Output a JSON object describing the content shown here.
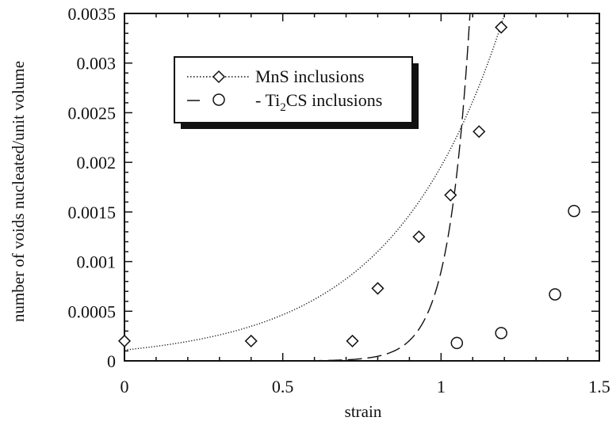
{
  "chart_data": {
    "type": "scatter",
    "xlabel": "strain",
    "ylabel": "number of voids nucleated/unit volume",
    "xlim": [
      0,
      1.5
    ],
    "ylim": [
      0,
      0.0035
    ],
    "x_ticks": [
      "0",
      "0.5",
      "1",
      "1.5"
    ],
    "x_tick_values": [
      0,
      0.5,
      1,
      1.5
    ],
    "y_ticks": [
      "0",
      "0.0005",
      "0.001",
      "0.0015",
      "0.002",
      "0.0025",
      "0.003",
      "0.0035"
    ],
    "y_tick_values": [
      0,
      0.0005,
      0.001,
      0.0015,
      0.002,
      0.0025,
      0.003,
      0.0035
    ],
    "grid": false,
    "legend_position": "top-left",
    "series": [
      {
        "name": "MnS inclusions",
        "legend_prefix": "",
        "legend_main": "MnS inclusions",
        "legend_sub": "",
        "legend_tail": "",
        "marker": "diamond",
        "line_style": "dotted",
        "color": "#111111",
        "points": [
          {
            "x": 0.0,
            "y": 0.0002
          },
          {
            "x": 0.4,
            "y": 0.0002
          },
          {
            "x": 0.72,
            "y": 0.0002
          },
          {
            "x": 0.8,
            "y": 0.00073
          },
          {
            "x": 0.93,
            "y": 0.00125
          },
          {
            "x": 1.03,
            "y": 0.00167
          },
          {
            "x": 1.12,
            "y": 0.00231
          },
          {
            "x": 1.19,
            "y": 0.00336
          }
        ],
        "fit": {
          "model": "exponential",
          "a": 0.00011,
          "b": 2.88,
          "x_range": [
            0.0,
            1.5
          ]
        }
      },
      {
        "name": "Ti2CS inclusions",
        "legend_prefix": "- ",
        "legend_main": "Ti",
        "legend_sub": "2",
        "legend_tail": "CS inclusions",
        "marker": "circle",
        "line_style": "dashed",
        "color": "#111111",
        "points": [
          {
            "x": 1.05,
            "y": 0.00018
          },
          {
            "x": 1.19,
            "y": 0.00028
          },
          {
            "x": 1.36,
            "y": 0.00067
          },
          {
            "x": 1.42,
            "y": 0.00151
          }
        ],
        "fit": {
          "model": "exponential",
          "a": 3.2e-10,
          "b": 14.85,
          "x_range": [
            0.58,
            1.5
          ]
        }
      }
    ]
  }
}
